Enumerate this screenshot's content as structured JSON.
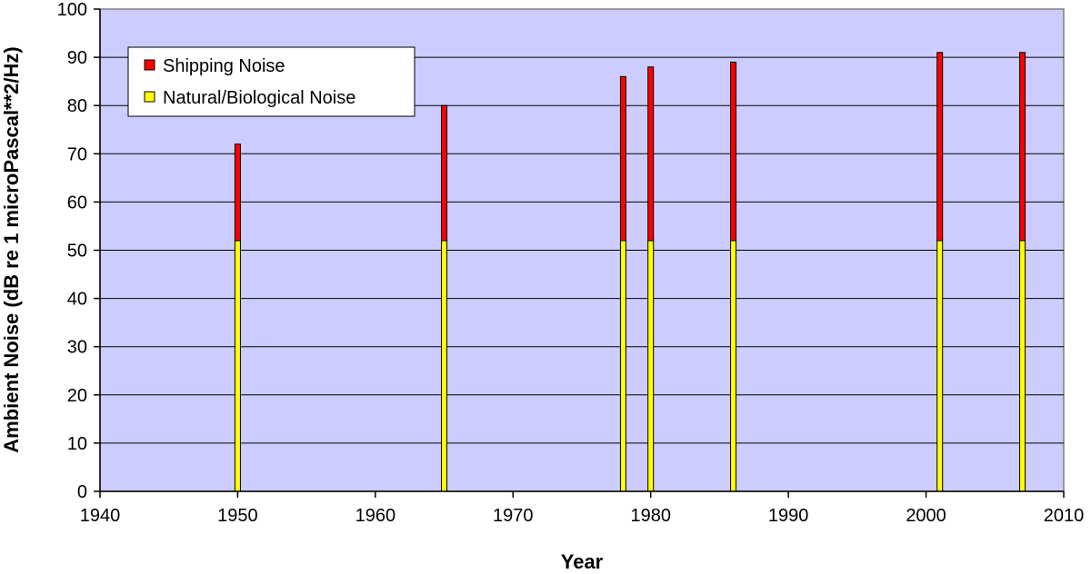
{
  "chart_data": {
    "type": "bar",
    "stacked": true,
    "title": "",
    "xlabel": "Year",
    "ylabel": "Ambient Noise (dB re 1 microPascal**2/Hz)",
    "xlim": [
      1940,
      2010
    ],
    "ylim": [
      0,
      100
    ],
    "xticks": [
      "1940",
      "1950",
      "1960",
      "1970",
      "1980",
      "1990",
      "2000",
      "2010"
    ],
    "yticks": [
      "0",
      "10",
      "20",
      "30",
      "40",
      "50",
      "60",
      "70",
      "80",
      "90",
      "100"
    ],
    "grid": true,
    "plot_background": "#ccccff",
    "legend_position": "top-left",
    "x": [
      1950,
      1965,
      1978,
      1980,
      1986,
      2001,
      2007
    ],
    "series": [
      {
        "name": "Natural/Biological Noise",
        "color": "#ffff00",
        "values": [
          52,
          52,
          52,
          52,
          52,
          52,
          52
        ]
      },
      {
        "name": "Shipping Noise",
        "color": "#ff0000",
        "values": [
          20,
          28,
          34,
          36,
          37,
          39,
          39
        ]
      }
    ],
    "legend": [
      {
        "label": "Shipping Noise",
        "color": "#ff0000"
      },
      {
        "label": "Natural/Biological Noise",
        "color": "#ffff00"
      }
    ]
  }
}
